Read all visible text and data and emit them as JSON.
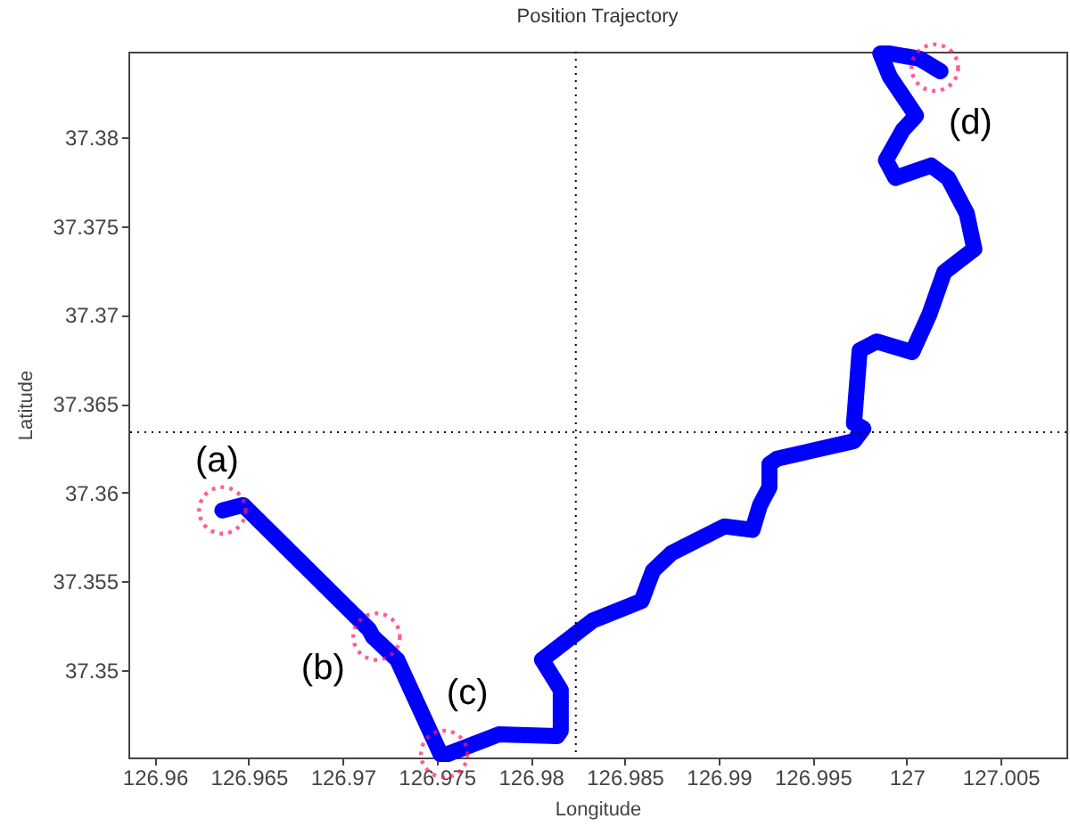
{
  "chart_data": {
    "type": "line",
    "title": "Position Trajectory",
    "xlabel": "Longitude",
    "ylabel": "Latitude",
    "x": [
      126.9636,
      126.9647,
      126.9714,
      126.9716,
      126.9729,
      126.9752,
      126.9756,
      126.9783,
      126.9814,
      126.9816,
      126.9816,
      126.9806,
      126.9833,
      126.9859,
      126.9865,
      126.9875,
      126.9903,
      126.9918,
      126.9922,
      126.9927,
      126.9927,
      126.9931,
      126.9972,
      126.9977,
      126.9972,
      126.9975,
      126.9984,
      127.0003,
      127.0012,
      127.002,
      127.0036,
      127.0032,
      127.0022,
      127.0013,
      126.9994,
      126.9989,
      126.9998,
      127.0005,
      126.9991,
      126.9986,
      126.9991,
      127.0007,
      127.0018
    ],
    "series": [
      {
        "color": "#0000ff",
        "line_style": "solid",
        "values": [
          37.359,
          37.3593,
          37.3523,
          37.3519,
          37.3506,
          37.3453,
          37.3453,
          37.3464,
          37.3463,
          37.3466,
          37.3489,
          37.3506,
          37.3528,
          37.3539,
          37.3556,
          37.3566,
          37.3581,
          37.3579,
          37.3593,
          37.3603,
          37.3616,
          37.3619,
          37.3629,
          37.3636,
          37.3639,
          37.368,
          37.3685,
          37.3679,
          37.37,
          37.3724,
          37.3737,
          37.3757,
          37.3777,
          37.3784,
          37.3777,
          37.3787,
          37.3804,
          37.3812,
          37.3834,
          37.3847,
          37.3847,
          37.3844,
          37.3837
        ]
      }
    ],
    "xlim": [
      126.9586,
      127.0085
    ],
    "ylim": [
      37.3451,
      37.3848
    ],
    "xticks": [
      126.96,
      126.965,
      126.97,
      126.975,
      126.98,
      126.985,
      126.99,
      126.995,
      127,
      127.005
    ],
    "yticks": [
      37.35,
      37.355,
      37.36,
      37.365,
      37.37,
      37.375,
      37.38
    ],
    "ref_lines": [
      {
        "axis": "x",
        "value": 126.9824,
        "line_style": "dotted",
        "color": "#000000"
      },
      {
        "axis": "y",
        "value": 37.3634,
        "line_style": "dotted",
        "color": "#000000"
      }
    ],
    "annotations": [
      {
        "text": "(a)",
        "x": 126.9636,
        "y": 37.359
      },
      {
        "text": "(b)",
        "x": 126.9718,
        "y": 37.3519
      },
      {
        "text": "(c)",
        "x": 126.9754,
        "y": 37.3453
      },
      {
        "text": "(d)",
        "x": 127.0015,
        "y": 37.3839
      }
    ]
  }
}
